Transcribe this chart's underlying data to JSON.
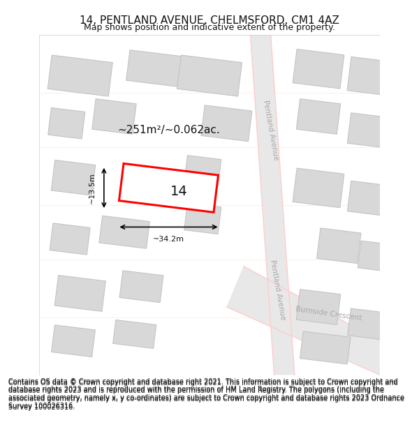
{
  "title": "14, PENTLAND AVENUE, CHELMSFORD, CM1 4AZ",
  "subtitle": "Map shows position and indicative extent of the property.",
  "footer": "Contains OS data © Crown copyright and database right 2021. This information is subject to Crown copyright and database rights 2023 and is reproduced with the permission of HM Land Registry. The polygons (including the associated geometry, namely x, y co-ordinates) are subject to Crown copyright and database rights 2023 Ordnance Survey 100026316.",
  "area_label": "~251m²/~0.062ac.",
  "width_label": "~34.2m",
  "height_label": "~13.5m",
  "property_number": "14",
  "bg_color": "#ffffff",
  "map_bg_color": "#f5f5f5",
  "road_color": "#e8e8e8",
  "building_fill": "#d8d8d8",
  "building_edge": "#c0c0c0",
  "highlight_fill": "#ffffff",
  "highlight_edge": "#ff0000",
  "road_line_color": "#ffcccc",
  "street_label1": "Pentland Avenue",
  "street_label2": "Pentland Avenue",
  "street_label3": "Burnside Crescent",
  "title_fontsize": 11,
  "subtitle_fontsize": 9,
  "footer_fontsize": 7
}
